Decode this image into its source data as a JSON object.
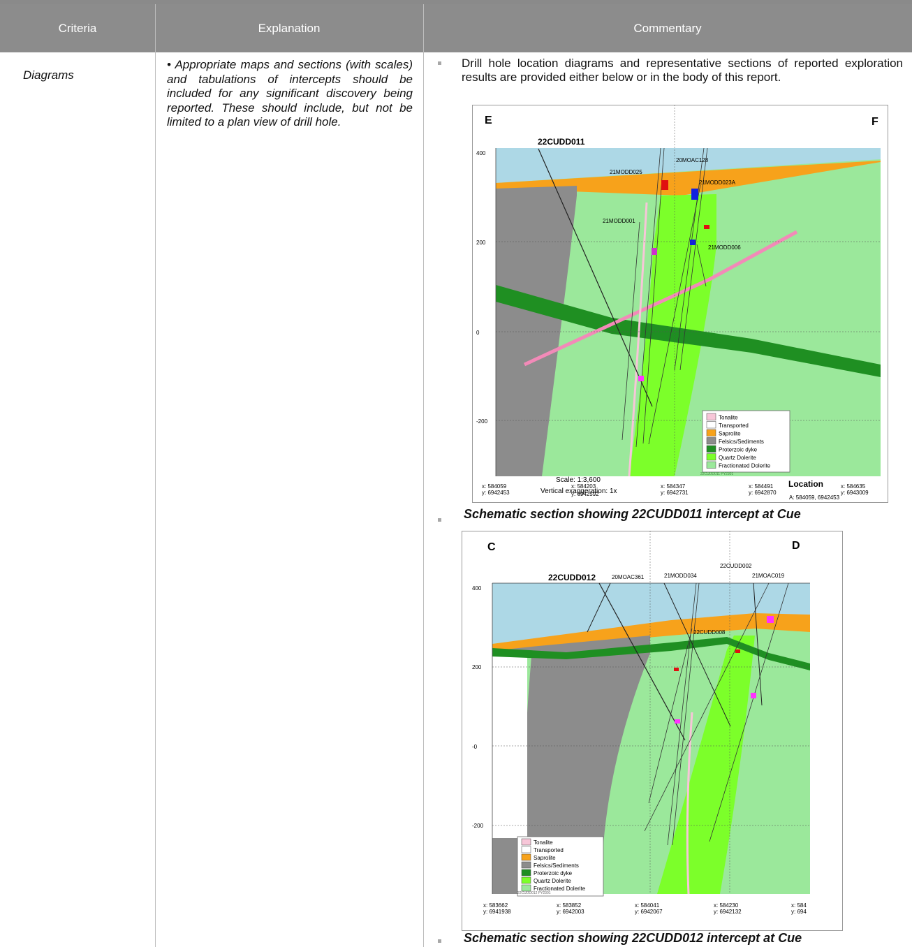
{
  "header": {
    "criteria": "Criteria",
    "explanation": "Explanation",
    "commentary": "Commentary"
  },
  "row": {
    "criteria": "Diagrams",
    "explanation": "• Appropriate maps and sections (with scales) and tabulations of intercepts should be included for any significant discovery being reported. These should include, but not be limited to a plan view of drill hole.",
    "commentary": "Drill hole location diagrams and representative sections of reported exploration results are provided either below or in the body of this report."
  },
  "figure1": {
    "caption": "Schematic section showing 22CUDD011 intercept at Cue",
    "left_label": "E",
    "right_label": "F",
    "target_hole": "22CUDD011",
    "holes": [
      "20MOAC128",
      "21MODD025",
      "21MODD023A",
      "21MODD001",
      "21MODD006"
    ],
    "y_ticks": [
      "400",
      "200",
      "0",
      "-200"
    ],
    "scale": "Scale: 1:3,600",
    "vertical_exaggeration": "Vertical exaggeration: 1x",
    "x_labels": [
      {
        "x": "x: 584059",
        "y": "y: 6942453"
      },
      {
        "x": "x: 584203",
        "y": "y: 6942592"
      },
      {
        "x": "x: 584347",
        "y": "y: 6942731"
      },
      {
        "x": "x: 584491",
        "y": "y: 6942870"
      },
      {
        "x": "x: 584635",
        "y": "y: 6943009"
      }
    ],
    "location_title": "Location",
    "location_coord": "A: 584059, 6942453",
    "footer_code": "22CUDD011 PY2301",
    "legend": [
      {
        "label": "Tonalite",
        "color": "#f7c6d8"
      },
      {
        "label": "Transported",
        "color": "#ffffff"
      },
      {
        "label": "Saprolite",
        "color": "#f7a21b"
      },
      {
        "label": "Felsics/Sediments",
        "color": "#8c8c8c"
      },
      {
        "label": "Proterzoic dyke",
        "color": "#1f8f22"
      },
      {
        "label": "Quartz Dolerite",
        "color": "#7cff2a"
      },
      {
        "label": "Fractionated Dolerite",
        "color": "#9be89b"
      }
    ]
  },
  "figure2": {
    "caption": "Schematic section showing 22CUDD012 intercept at Cue",
    "left_label": "C",
    "right_label": "D",
    "target_hole": "22CUDD012",
    "holes": [
      "20MOAC361",
      "21MODD034",
      "22CUDD002",
      "21MOAC019",
      "22CUDD008"
    ],
    "y_ticks": [
      "400",
      "200",
      "-0",
      "-200"
    ],
    "x_labels": [
      {
        "x": "x: 583662",
        "y": "y: 6941938"
      },
      {
        "x": "x: 583852",
        "y": "y: 6942003"
      },
      {
        "x": "x: 584041",
        "y": "y: 6942067"
      },
      {
        "x": "x: 584230",
        "y": "y: 6942132"
      },
      {
        "x": "x: 584",
        "y": "y: 694"
      }
    ],
    "footer_code": "22CUDD012 PY2301",
    "legend": [
      {
        "label": "Tonalite",
        "color": "#f7c6d8"
      },
      {
        "label": "Transported",
        "color": "#ffffff"
      },
      {
        "label": "Saprolite",
        "color": "#f7a21b"
      },
      {
        "label": "Felsics/Sediments",
        "color": "#8c8c8c"
      },
      {
        "label": "Proterzoic dyke",
        "color": "#1f8f22"
      },
      {
        "label": "Quartz Dolerite",
        "color": "#7cff2a"
      },
      {
        "label": "Fractionated Dolerite",
        "color": "#9be89b"
      }
    ]
  }
}
